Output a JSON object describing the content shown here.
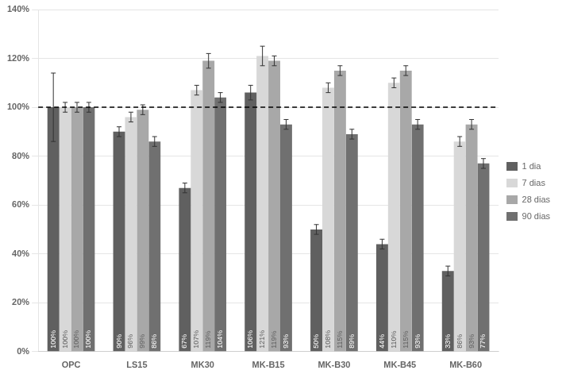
{
  "chart_data": {
    "type": "bar",
    "categories": [
      "OPC",
      "LS15",
      "MK30",
      "MK-B15",
      "MK-B30",
      "MK-B45",
      "MK-B60"
    ],
    "series": [
      {
        "name": "1 dia",
        "color": "#606060",
        "values": [
          100,
          90,
          67,
          106,
          50,
          44,
          33
        ],
        "value_labels": [
          "100%",
          "90%",
          "67%",
          "106%",
          "50%",
          "44%",
          "33%"
        ],
        "errors": [
          14,
          2,
          2,
          3,
          2,
          2,
          2
        ]
      },
      {
        "name": "7 dias",
        "color": "#d8d8d8",
        "values": [
          100,
          96,
          107,
          121,
          108,
          110,
          86
        ],
        "value_labels": [
          "100%",
          "96%",
          "107%",
          "121%",
          "108%",
          "110%",
          "86%"
        ],
        "errors": [
          2,
          2,
          2,
          4,
          2,
          2,
          2
        ]
      },
      {
        "name": "28 dias",
        "color": "#a8a8a8",
        "values": [
          100,
          99,
          119,
          119,
          115,
          115,
          93
        ],
        "value_labels": [
          "100%",
          "99%",
          "119%",
          "119%",
          "115%",
          "115%",
          "93%"
        ],
        "errors": [
          2,
          2,
          3,
          2,
          2,
          2,
          2
        ]
      },
      {
        "name": "90 dias",
        "color": "#707070",
        "values": [
          100,
          86,
          104,
          93,
          89,
          93,
          77
        ],
        "value_labels": [
          "100%",
          "86%",
          "104%",
          "93%",
          "89%",
          "93%",
          "77%"
        ],
        "errors": [
          2,
          2,
          2,
          2,
          2,
          2,
          2
        ]
      }
    ],
    "ylim": [
      0,
      140
    ],
    "yticks": [
      {
        "value": 0,
        "label": "0%"
      },
      {
        "value": 20,
        "label": "20%"
      },
      {
        "value": 40,
        "label": "40%"
      },
      {
        "value": 60,
        "label": "60%"
      },
      {
        "value": 80,
        "label": "80%"
      },
      {
        "value": 100,
        "label": "100%"
      },
      {
        "value": 120,
        "label": "120%"
      },
      {
        "value": 140,
        "label": "140%"
      }
    ],
    "reference_line": 100,
    "grid": true,
    "legend": "right",
    "data_labels": true
  }
}
